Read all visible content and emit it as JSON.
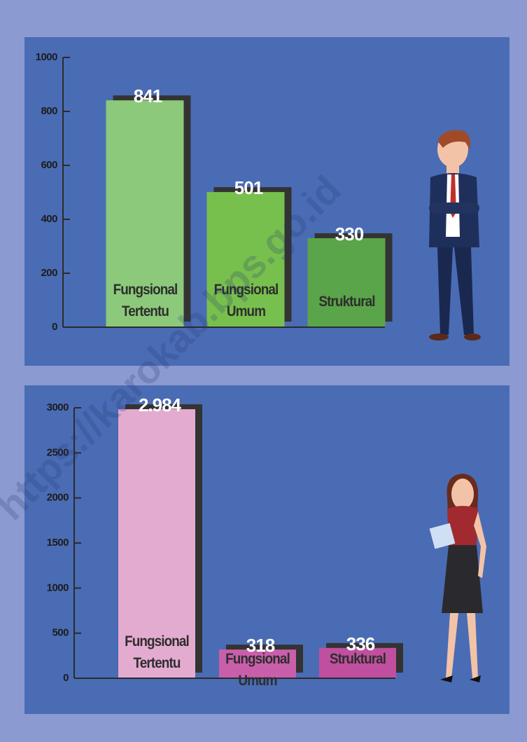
{
  "chart_data": [
    {
      "type": "bar",
      "categories": [
        "Fungsional Tertentu",
        "Fungsional Umum",
        "Struktural"
      ],
      "values": [
        841,
        501,
        330
      ],
      "colors": [
        "#8cc97a",
        "#78c04e",
        "#5aa449"
      ],
      "ylim": [
        0,
        1000
      ],
      "yticks": [
        0,
        200,
        400,
        600,
        800,
        1000
      ]
    },
    {
      "type": "bar",
      "categories": [
        "Fungsional Tertentu",
        "Fungsional Umum",
        "Struktural"
      ],
      "values": [
        2984,
        318,
        336
      ],
      "value_labels": [
        "2.984",
        "318",
        "336"
      ],
      "colors": [
        "#e4abd0",
        "#c95fab",
        "#c0509f"
      ],
      "ylim": [
        0,
        3000
      ],
      "yticks": [
        0,
        500,
        1000,
        1500,
        2000,
        2500,
        3000
      ]
    }
  ],
  "watermark": "https://karokab.bps.go.id"
}
